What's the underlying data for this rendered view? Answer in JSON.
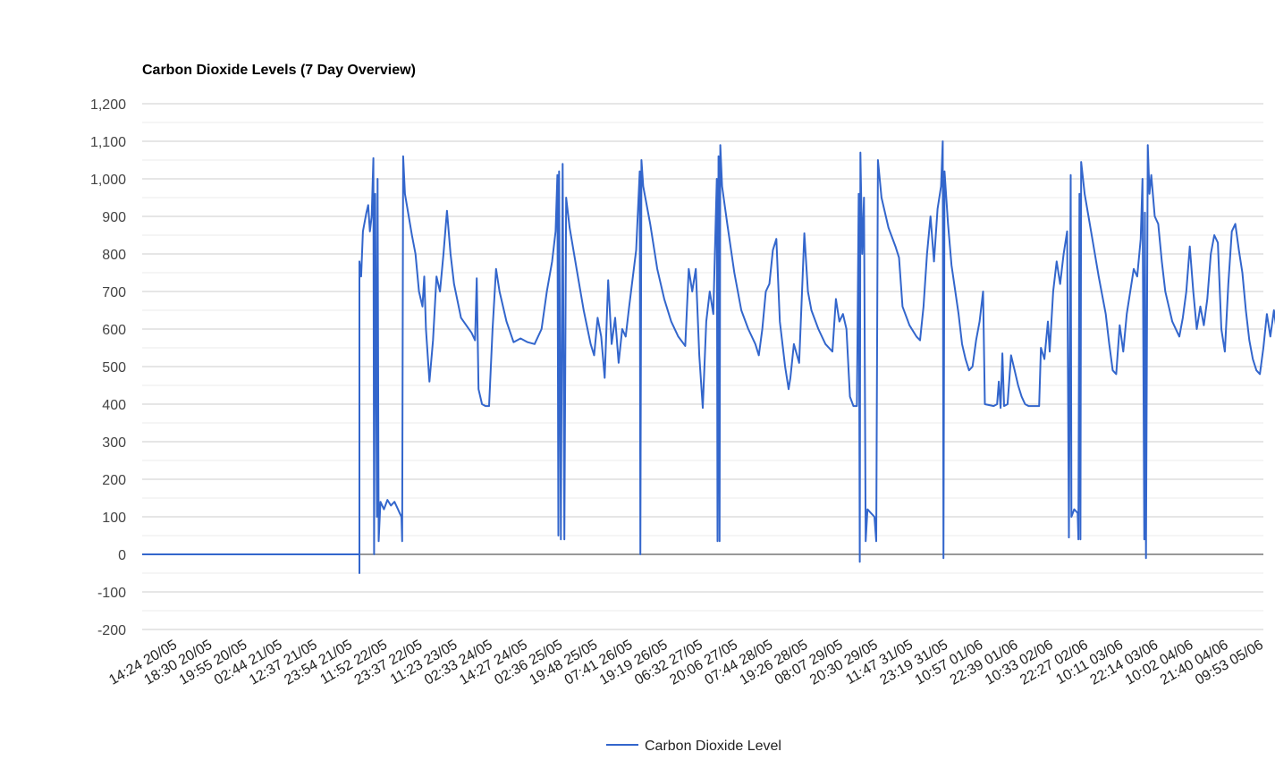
{
  "chart_data": {
    "type": "line",
    "title": "Carbon Dioxide Levels (7 Day Overview)",
    "ylim": [
      -200,
      1200
    ],
    "yticks": [
      1200,
      1100,
      1000,
      900,
      800,
      700,
      600,
      500,
      400,
      300,
      200,
      100,
      0,
      -100,
      -200
    ],
    "ytick_labels": [
      "1,200",
      "1,100",
      "1,000",
      "900",
      "800",
      "700",
      "600",
      "500",
      "400",
      "300",
      "200",
      "100",
      "0",
      "-100",
      "-200"
    ],
    "x_tick_labels": [
      "14:24 20/05",
      "18:30 20/05",
      "19:55 20/05",
      "02:44 21/05",
      "12:37 21/05",
      "23:54 21/05",
      "11:52 22/05",
      "23:37 22/05",
      "11:23 23/05",
      "02:33 24/05",
      "14:27 24/05",
      "02:36 25/05",
      "19:48 25/05",
      "07:41 26/05",
      "19:19 26/05",
      "06:32 27/05",
      "20:06 27/05",
      "07:44 28/05",
      "19:26 28/05",
      "08:07 29/05",
      "20:30 29/05",
      "11:47 31/05",
      "23:19 31/05",
      "10:57 01/06",
      "22:39 01/06",
      "10:33 02/06",
      "22:27 02/06",
      "10:11 03/06",
      "22:14 03/06",
      "10:02 04/06",
      "21:40 04/06",
      "09:53 05/06"
    ],
    "grid": true,
    "legend_position": "bottom",
    "series": [
      {
        "name": "Carbon Dioxide Level",
        "color": "#3366cc",
        "points": [
          [
            0,
            0
          ],
          [
            6.2,
            0
          ],
          [
            6.2,
            -50
          ],
          [
            6.2,
            780
          ],
          [
            6.25,
            740
          ],
          [
            6.3,
            860
          ],
          [
            6.4,
            910
          ],
          [
            6.45,
            930
          ],
          [
            6.5,
            860
          ],
          [
            6.55,
            900
          ],
          [
            6.6,
            1055
          ],
          [
            6.62,
            0
          ],
          [
            6.65,
            960
          ],
          [
            6.7,
            100
          ],
          [
            6.72,
            1000
          ],
          [
            6.75,
            35
          ],
          [
            6.8,
            140
          ],
          [
            6.9,
            120
          ],
          [
            7.0,
            145
          ],
          [
            7.1,
            130
          ],
          [
            7.2,
            140
          ],
          [
            7.3,
            120
          ],
          [
            7.35,
            110
          ],
          [
            7.4,
            100
          ],
          [
            7.42,
            35
          ],
          [
            7.45,
            1060
          ],
          [
            7.5,
            960
          ],
          [
            7.7,
            850
          ],
          [
            7.8,
            800
          ],
          [
            7.9,
            700
          ],
          [
            8.0,
            660
          ],
          [
            8.05,
            740
          ],
          [
            8.1,
            600
          ],
          [
            8.2,
            460
          ],
          [
            8.3,
            570
          ],
          [
            8.4,
            740
          ],
          [
            8.5,
            700
          ],
          [
            8.6,
            800
          ],
          [
            8.7,
            915
          ],
          [
            8.8,
            800
          ],
          [
            8.9,
            720
          ],
          [
            9.1,
            630
          ],
          [
            9.4,
            590
          ],
          [
            9.5,
            570
          ],
          [
            9.55,
            735
          ],
          [
            9.6,
            440
          ],
          [
            9.7,
            400
          ],
          [
            9.8,
            395
          ],
          [
            9.9,
            395
          ],
          [
            10.0,
            600
          ],
          [
            10.1,
            760
          ],
          [
            10.2,
            700
          ],
          [
            10.4,
            620
          ],
          [
            10.6,
            565
          ],
          [
            10.8,
            575
          ],
          [
            11.0,
            565
          ],
          [
            11.2,
            560
          ],
          [
            11.4,
            600
          ],
          [
            11.55,
            700
          ],
          [
            11.7,
            780
          ],
          [
            11.8,
            860
          ],
          [
            11.85,
            1010
          ],
          [
            11.88,
            50
          ],
          [
            11.9,
            1020
          ],
          [
            11.95,
            40
          ],
          [
            12.0,
            1040
          ],
          [
            12.05,
            40
          ],
          [
            12.1,
            950
          ],
          [
            12.2,
            870
          ],
          [
            12.4,
            760
          ],
          [
            12.6,
            650
          ],
          [
            12.8,
            560
          ],
          [
            12.9,
            530
          ],
          [
            13.0,
            630
          ],
          [
            13.1,
            580
          ],
          [
            13.2,
            470
          ],
          [
            13.3,
            730
          ],
          [
            13.4,
            560
          ],
          [
            13.5,
            630
          ],
          [
            13.6,
            510
          ],
          [
            13.7,
            600
          ],
          [
            13.8,
            580
          ],
          [
            13.9,
            660
          ],
          [
            14.1,
            810
          ],
          [
            14.2,
            1020
          ],
          [
            14.22,
            0
          ],
          [
            14.25,
            1050
          ],
          [
            14.3,
            980
          ],
          [
            14.5,
            880
          ],
          [
            14.7,
            760
          ],
          [
            14.9,
            680
          ],
          [
            15.1,
            620
          ],
          [
            15.3,
            580
          ],
          [
            15.5,
            555
          ],
          [
            15.6,
            760
          ],
          [
            15.7,
            700
          ],
          [
            15.8,
            760
          ],
          [
            15.9,
            530
          ],
          [
            16.0,
            390
          ],
          [
            16.1,
            620
          ],
          [
            16.2,
            700
          ],
          [
            16.3,
            640
          ],
          [
            16.4,
            1000
          ],
          [
            16.42,
            35
          ],
          [
            16.45,
            1060
          ],
          [
            16.48,
            35
          ],
          [
            16.5,
            1090
          ],
          [
            16.55,
            980
          ],
          [
            16.7,
            880
          ],
          [
            16.9,
            750
          ],
          [
            17.1,
            650
          ],
          [
            17.3,
            600
          ],
          [
            17.5,
            560
          ],
          [
            17.6,
            530
          ],
          [
            17.7,
            600
          ],
          [
            17.8,
            700
          ],
          [
            17.9,
            720
          ],
          [
            18.0,
            810
          ],
          [
            18.1,
            840
          ],
          [
            18.2,
            620
          ],
          [
            18.35,
            500
          ],
          [
            18.45,
            440
          ],
          [
            18.5,
            470
          ],
          [
            18.6,
            560
          ],
          [
            18.75,
            510
          ],
          [
            18.85,
            740
          ],
          [
            18.9,
            855
          ],
          [
            19.0,
            700
          ],
          [
            19.1,
            650
          ],
          [
            19.3,
            600
          ],
          [
            19.5,
            560
          ],
          [
            19.7,
            540
          ],
          [
            19.8,
            680
          ],
          [
            19.9,
            620
          ],
          [
            20.0,
            640
          ],
          [
            20.1,
            600
          ],
          [
            20.2,
            420
          ],
          [
            20.3,
            395
          ],
          [
            20.4,
            395
          ],
          [
            20.45,
            960
          ],
          [
            20.48,
            -20
          ],
          [
            20.5,
            1070
          ],
          [
            20.55,
            800
          ],
          [
            20.6,
            950
          ],
          [
            20.65,
            35
          ],
          [
            20.7,
            120
          ],
          [
            20.8,
            110
          ],
          [
            20.9,
            100
          ],
          [
            20.95,
            35
          ],
          [
            21.0,
            1050
          ],
          [
            21.1,
            950
          ],
          [
            21.3,
            870
          ],
          [
            21.5,
            820
          ],
          [
            21.6,
            790
          ],
          [
            21.7,
            660
          ],
          [
            21.9,
            610
          ],
          [
            22.1,
            580
          ],
          [
            22.2,
            570
          ],
          [
            22.3,
            660
          ],
          [
            22.4,
            800
          ],
          [
            22.5,
            900
          ],
          [
            22.6,
            780
          ],
          [
            22.7,
            920
          ],
          [
            22.8,
            980
          ],
          [
            22.85,
            1100
          ],
          [
            22.87,
            -10
          ],
          [
            22.9,
            1020
          ],
          [
            23.0,
            880
          ],
          [
            23.1,
            770
          ],
          [
            23.3,
            640
          ],
          [
            23.4,
            560
          ],
          [
            23.5,
            520
          ],
          [
            23.6,
            490
          ],
          [
            23.7,
            500
          ],
          [
            23.8,
            570
          ],
          [
            23.9,
            620
          ],
          [
            24.0,
            700
          ],
          [
            24.05,
            400
          ],
          [
            24.3,
            395
          ],
          [
            24.4,
            400
          ],
          [
            24.45,
            460
          ],
          [
            24.5,
            390
          ],
          [
            24.55,
            535
          ],
          [
            24.6,
            395
          ],
          [
            24.7,
            400
          ],
          [
            24.8,
            530
          ],
          [
            24.9,
            490
          ],
          [
            25.0,
            450
          ],
          [
            25.1,
            420
          ],
          [
            25.2,
            400
          ],
          [
            25.3,
            395
          ],
          [
            25.6,
            395
          ],
          [
            25.65,
            550
          ],
          [
            25.75,
            520
          ],
          [
            25.85,
            620
          ],
          [
            25.9,
            540
          ],
          [
            26.0,
            700
          ],
          [
            26.1,
            780
          ],
          [
            26.2,
            720
          ],
          [
            26.3,
            800
          ],
          [
            26.4,
            860
          ],
          [
            26.45,
            45
          ],
          [
            26.5,
            1010
          ],
          [
            26.52,
            100
          ],
          [
            26.6,
            120
          ],
          [
            26.7,
            110
          ],
          [
            26.72,
            40
          ],
          [
            26.75,
            960
          ],
          [
            26.78,
            40
          ],
          [
            26.8,
            1045
          ],
          [
            26.9,
            960
          ],
          [
            27.1,
            850
          ],
          [
            27.3,
            740
          ],
          [
            27.5,
            640
          ],
          [
            27.6,
            560
          ],
          [
            27.7,
            490
          ],
          [
            27.8,
            480
          ],
          [
            27.9,
            610
          ],
          [
            28.0,
            540
          ],
          [
            28.1,
            640
          ],
          [
            28.2,
            700
          ],
          [
            28.3,
            760
          ],
          [
            28.4,
            740
          ],
          [
            28.5,
            840
          ],
          [
            28.55,
            1000
          ],
          [
            28.6,
            40
          ],
          [
            28.62,
            910
          ],
          [
            28.65,
            -10
          ],
          [
            28.7,
            1090
          ],
          [
            28.75,
            960
          ],
          [
            28.8,
            1010
          ],
          [
            28.9,
            900
          ],
          [
            29.0,
            880
          ],
          [
            29.1,
            780
          ],
          [
            29.2,
            700
          ],
          [
            29.3,
            660
          ],
          [
            29.4,
            620
          ],
          [
            29.6,
            580
          ],
          [
            29.7,
            630
          ],
          [
            29.8,
            700
          ],
          [
            29.9,
            820
          ],
          [
            30.0,
            700
          ],
          [
            30.1,
            600
          ],
          [
            30.2,
            660
          ],
          [
            30.3,
            610
          ],
          [
            30.4,
            680
          ],
          [
            30.5,
            800
          ],
          [
            30.6,
            850
          ],
          [
            30.7,
            830
          ],
          [
            30.8,
            600
          ],
          [
            30.9,
            540
          ],
          [
            31.0,
            720
          ],
          [
            31.1,
            860
          ],
          [
            31.2,
            880
          ],
          [
            31.3,
            810
          ],
          [
            31.4,
            750
          ],
          [
            31.5,
            650
          ],
          [
            31.6,
            570
          ],
          [
            31.7,
            520
          ],
          [
            31.8,
            490
          ],
          [
            31.9,
            480
          ],
          [
            32.0,
            550
          ],
          [
            32.1,
            640
          ],
          [
            32.2,
            580
          ],
          [
            32.3,
            650
          ],
          [
            32.4,
            580
          ]
        ]
      }
    ]
  }
}
